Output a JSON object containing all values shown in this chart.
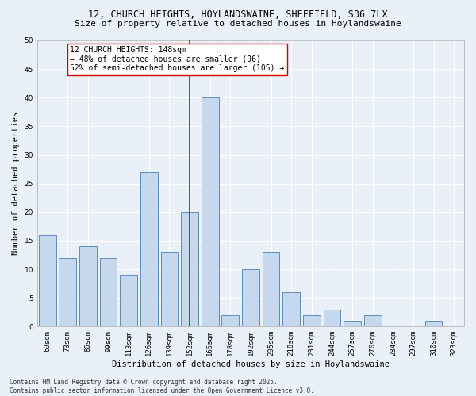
{
  "title_line1": "12, CHURCH HEIGHTS, HOYLANDSWAINE, SHEFFIELD, S36 7LX",
  "title_line2": "Size of property relative to detached houses in Hoylandswaine",
  "xlabel": "Distribution of detached houses by size in Hoylandswaine",
  "ylabel": "Number of detached properties",
  "categories": [
    "60sqm",
    "73sqm",
    "86sqm",
    "99sqm",
    "113sqm",
    "126sqm",
    "139sqm",
    "152sqm",
    "165sqm",
    "178sqm",
    "192sqm",
    "205sqm",
    "218sqm",
    "231sqm",
    "244sqm",
    "257sqm",
    "270sqm",
    "284sqm",
    "297sqm",
    "310sqm",
    "323sqm"
  ],
  "values": [
    16,
    12,
    14,
    12,
    9,
    27,
    13,
    20,
    40,
    2,
    10,
    13,
    6,
    2,
    3,
    1,
    2,
    0,
    0,
    1,
    0
  ],
  "bar_color": "#c5d8ee",
  "bar_edgecolor": "#4a7fb5",
  "vline_index": 7,
  "vline_color": "#cc0000",
  "annotation_text": "12 CHURCH HEIGHTS: 148sqm\n← 48% of detached houses are smaller (96)\n52% of semi-detached houses are larger (105) →",
  "annotation_box_color": "#ffffff",
  "annotation_box_edgecolor": "#cc0000",
  "ylim": [
    0,
    50
  ],
  "yticks": [
    0,
    5,
    10,
    15,
    20,
    25,
    30,
    35,
    40,
    45,
    50
  ],
  "footer_text": "Contains HM Land Registry data © Crown copyright and database right 2025.\nContains public sector information licensed under the Open Government Licence v3.0.",
  "background_color": "#eaf0f8",
  "plot_background_color": "#eaf0f8",
  "grid_color": "#ffffff",
  "title_fontsize": 8.5,
  "subtitle_fontsize": 8.0,
  "axis_label_fontsize": 7.5,
  "tick_fontsize": 6.5,
  "annotation_fontsize": 7.0,
  "footer_fontsize": 5.5
}
